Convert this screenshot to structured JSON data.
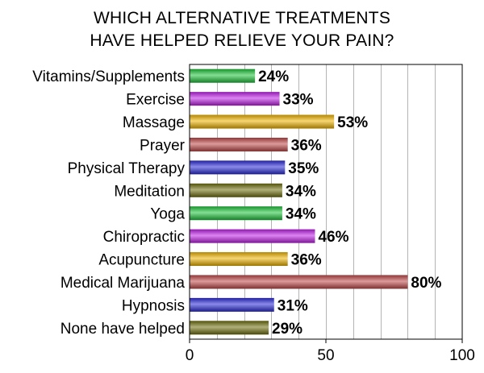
{
  "chart_data": {
    "type": "bar",
    "orientation": "horizontal",
    "title_lines": [
      "WHICH ALTERNATIVE TREATMENTS",
      "HAVE HELPED RELIEVE YOUR PAIN?"
    ],
    "categories": [
      "Vitamins/Supplements",
      "Exercise",
      "Massage",
      "Prayer",
      "Physical Therapy",
      "Meditation",
      "Yoga",
      "Chiropractic",
      "Acupuncture",
      "Medical Marijuana",
      "Hypnosis",
      "None have helped"
    ],
    "values": [
      24,
      33,
      53,
      36,
      35,
      34,
      34,
      46,
      36,
      80,
      31,
      29
    ],
    "data_labels": [
      "24%",
      "33%",
      "53%",
      "36%",
      "35%",
      "34%",
      "34%",
      "46%",
      "36%",
      "80%",
      "31%",
      "29%"
    ],
    "bar_colors": [
      "#1fc43a",
      "#c020e8",
      "#f0b400",
      "#c04848",
      "#2a2ad8",
      "#6f6f0e",
      "#1fc43a",
      "#c020e8",
      "#f0b400",
      "#c04848",
      "#2a2ad8",
      "#6f6f0e"
    ],
    "xlim": [
      0,
      100
    ],
    "xticks": [
      0,
      50,
      100
    ],
    "xtick_labels": [
      "0",
      "50",
      "100"
    ],
    "grid": true,
    "legend": "none"
  }
}
